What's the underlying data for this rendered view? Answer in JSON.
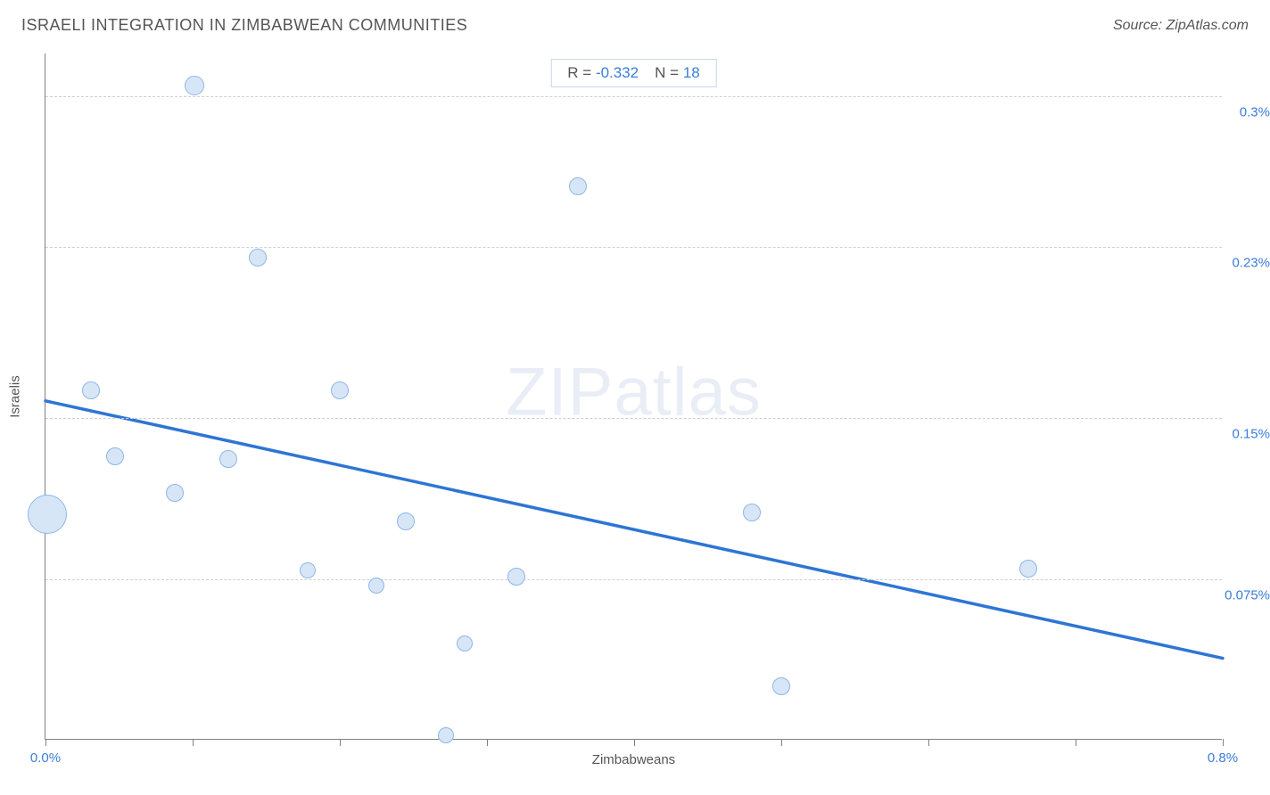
{
  "header": {
    "title": "ISRAELI INTEGRATION IN ZIMBABWEAN COMMUNITIES",
    "source": "Source: ZipAtlas.com"
  },
  "chart": {
    "type": "scatter",
    "xlabel": "Zimbabweans",
    "ylabel": "Israelis",
    "xlim": [
      0.0,
      0.8
    ],
    "ylim": [
      0.0,
      0.32
    ],
    "xtick_step": 0.1,
    "xtick_labels": {
      "0": "0.0%",
      "0.8": "0.8%"
    },
    "ytick_positions": [
      0.075,
      0.15,
      0.23,
      0.3
    ],
    "ytick_labels": [
      "0.075%",
      "0.15%",
      "0.23%",
      "0.3%"
    ],
    "grid_color": "#cfcfcf",
    "axis_color": "#808080",
    "label_fontsize": 15,
    "background_color": "#ffffff",
    "tick_color": "#3b7dd8",
    "bubble_fill": "#d7e6f7",
    "bubble_stroke": "#8fb6e6",
    "trend_color": "#2e75d4",
    "trend_width": 3.5,
    "points": [
      {
        "x": 0.001,
        "y": 0.105,
        "r": 22
      },
      {
        "x": 0.031,
        "y": 0.163,
        "r": 10
      },
      {
        "x": 0.047,
        "y": 0.132,
        "r": 10
      },
      {
        "x": 0.088,
        "y": 0.115,
        "r": 10
      },
      {
        "x": 0.101,
        "y": 0.305,
        "r": 11
      },
      {
        "x": 0.124,
        "y": 0.131,
        "r": 10
      },
      {
        "x": 0.144,
        "y": 0.225,
        "r": 10
      },
      {
        "x": 0.178,
        "y": 0.079,
        "r": 9
      },
      {
        "x": 0.2,
        "y": 0.163,
        "r": 10
      },
      {
        "x": 0.225,
        "y": 0.072,
        "r": 9
      },
      {
        "x": 0.245,
        "y": 0.102,
        "r": 10
      },
      {
        "x": 0.272,
        "y": 0.002,
        "r": 9
      },
      {
        "x": 0.285,
        "y": 0.045,
        "r": 9
      },
      {
        "x": 0.32,
        "y": 0.076,
        "r": 10
      },
      {
        "x": 0.362,
        "y": 0.258,
        "r": 10
      },
      {
        "x": 0.48,
        "y": 0.106,
        "r": 10
      },
      {
        "x": 0.5,
        "y": 0.025,
        "r": 10
      },
      {
        "x": 0.668,
        "y": 0.08,
        "r": 10
      }
    ],
    "trend": {
      "y_at_xmin": 0.158,
      "y_at_xmax": 0.038
    },
    "stats": {
      "r_label": "R =",
      "r_value": "-0.332",
      "n_label": "N =",
      "n_value": "18"
    },
    "watermark": {
      "prefix": "ZIP",
      "suffix": "atlas"
    }
  }
}
